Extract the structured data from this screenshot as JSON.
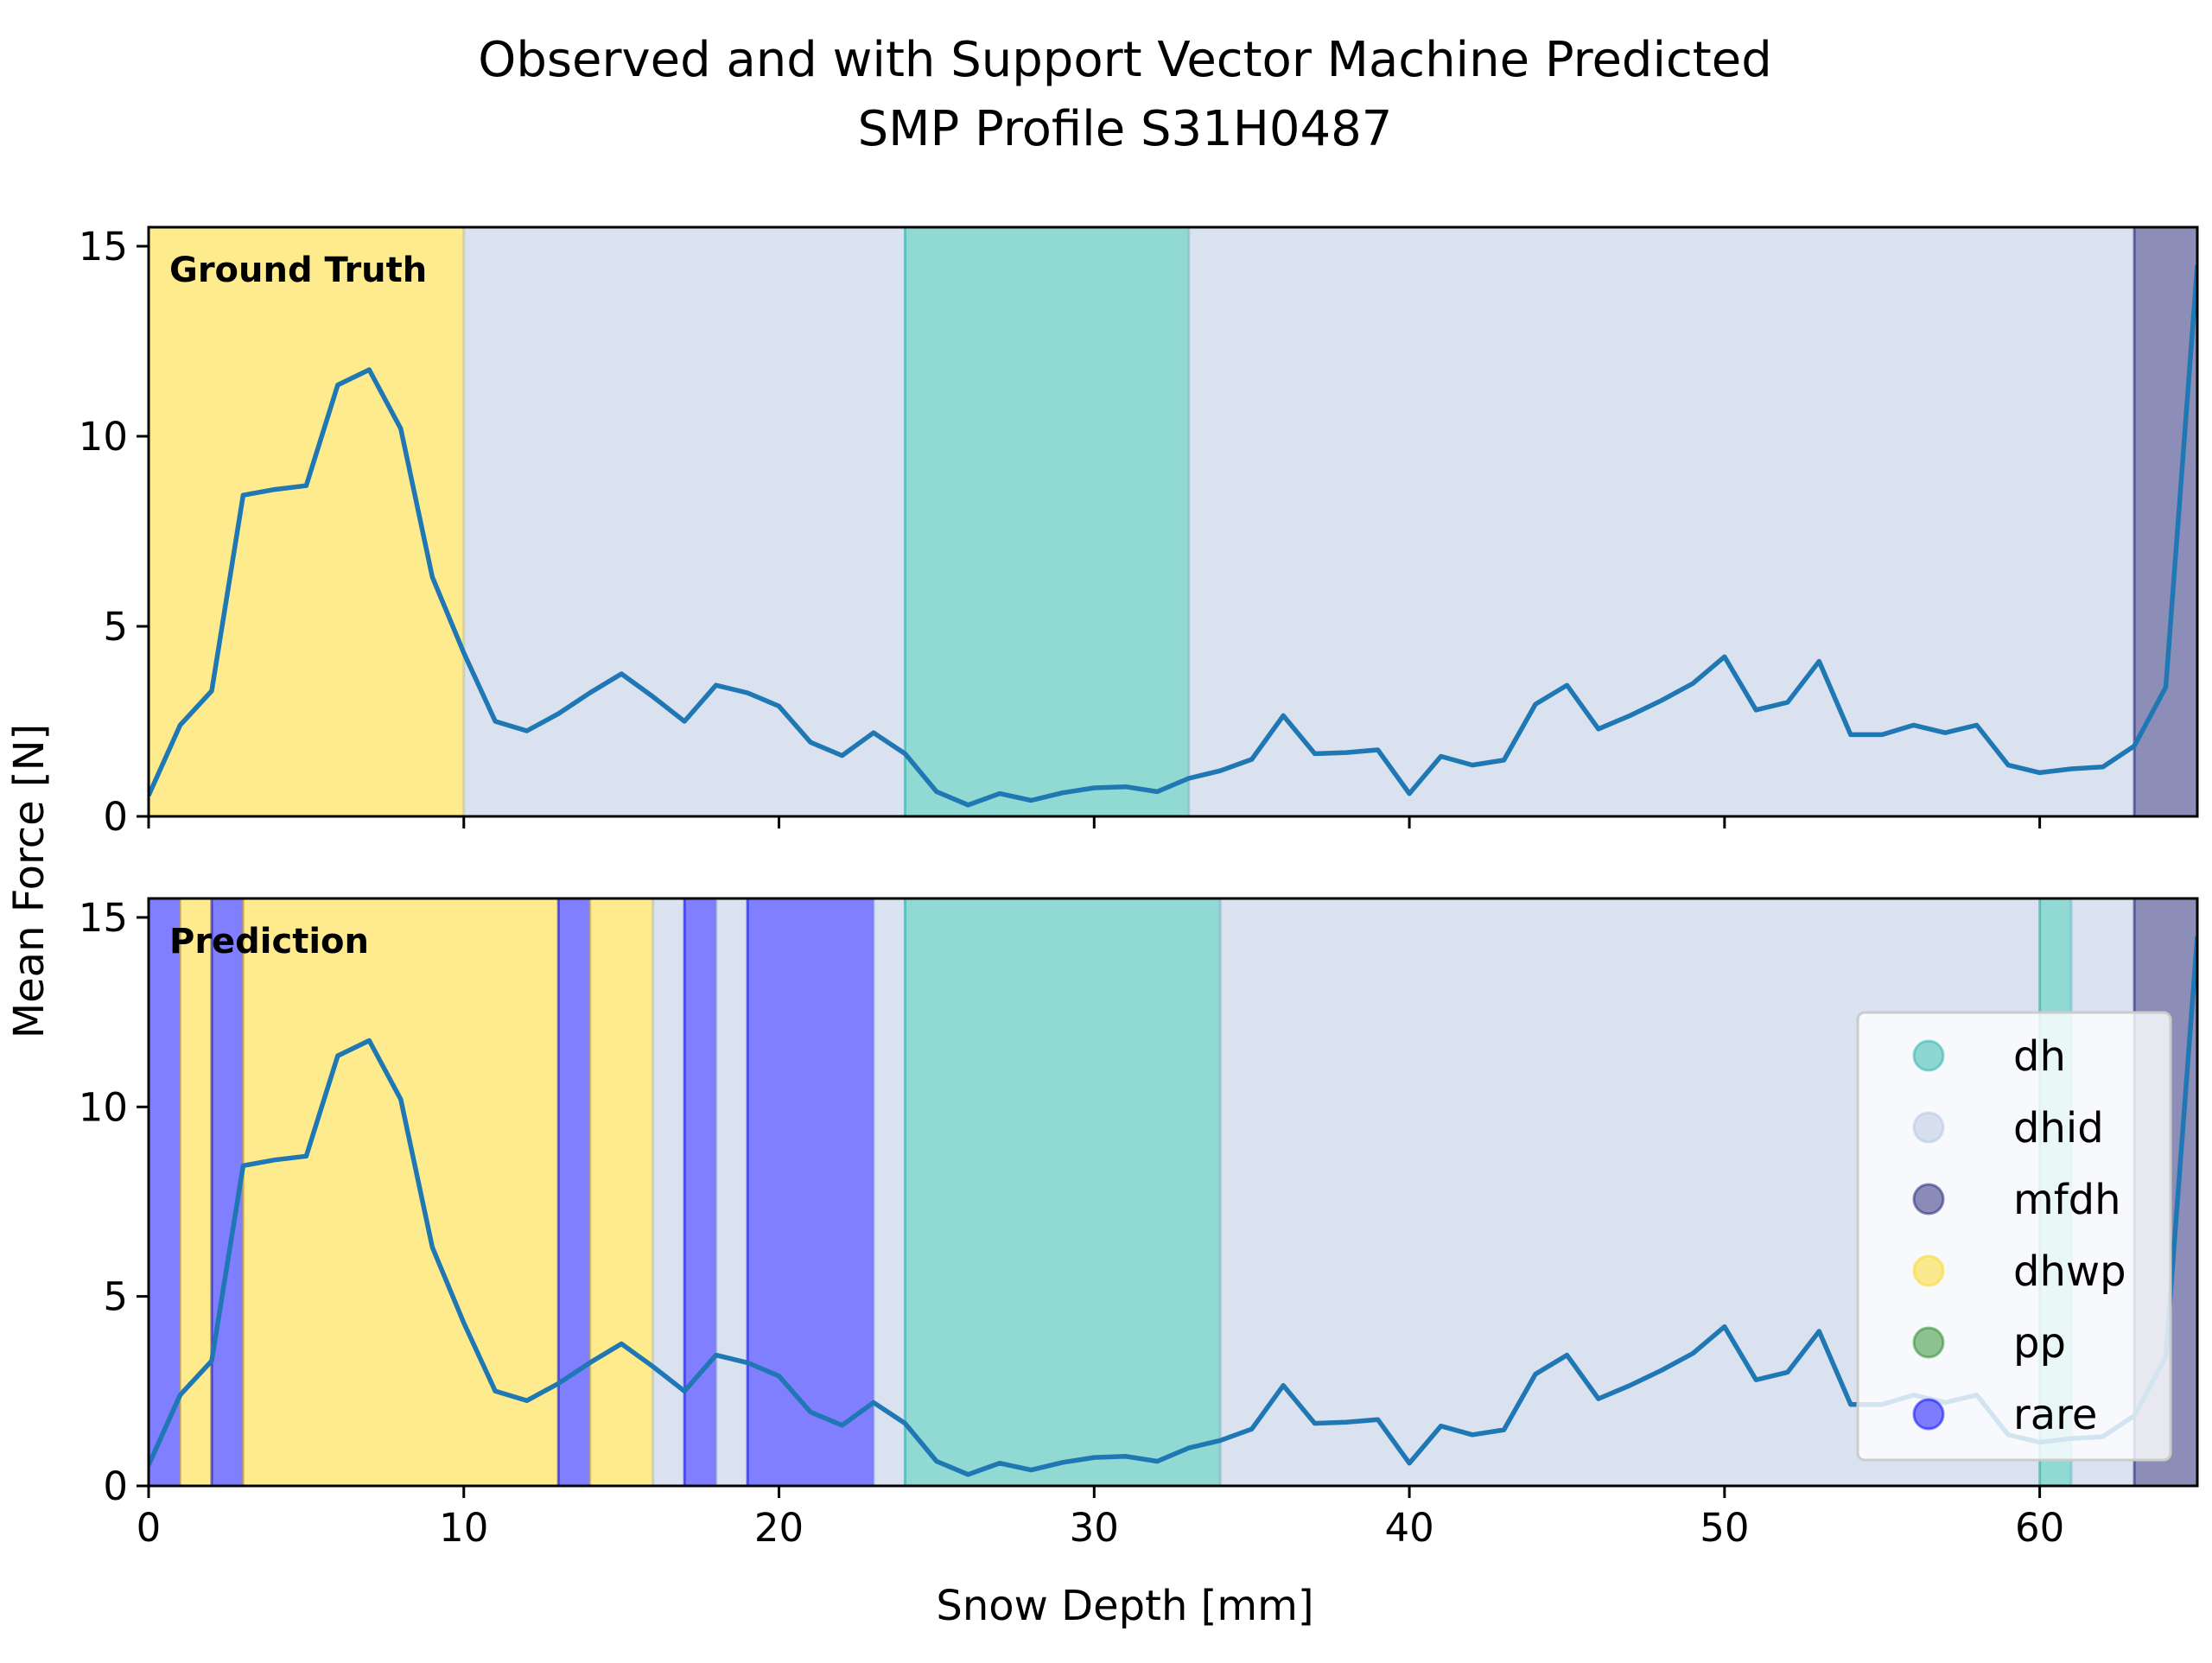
{
  "chart_data": {
    "type": "line",
    "title": [
      "Observed and with Support Vector Machine Predicted",
      "SMP Profile S31H0487"
    ],
    "xlabel": "Snow Depth [mm]",
    "ylabel": "Mean Force [N]",
    "xlim": [
      0,
      65
    ],
    "ylim": [
      0,
      15.5
    ],
    "xticks": [
      0,
      10,
      20,
      30,
      40,
      50,
      60
    ],
    "yticks": [
      0,
      5,
      10,
      15
    ],
    "colors": {
      "line": "#1f77b4",
      "dh": "#23b3a8",
      "dhid": "#b3c6de",
      "mfdh": "#1b1e72",
      "dhwp": "#fcd81e",
      "pp": "#218a21",
      "rare": "#0000ff"
    },
    "legend": {
      "position": "lower right",
      "entries": [
        "dh",
        "dhid",
        "mfdh",
        "dhwp",
        "pp",
        "rare"
      ]
    },
    "series": [
      {
        "x": [
          0,
          1,
          2,
          3,
          4,
          5,
          6,
          7,
          8,
          9,
          10,
          11,
          12,
          13,
          14,
          15,
          16,
          17,
          18,
          19,
          20,
          21,
          22,
          23,
          24,
          25,
          26,
          27,
          28,
          29,
          30,
          31,
          32,
          33,
          34,
          35,
          36,
          37,
          38,
          39,
          40,
          41,
          42,
          43,
          44,
          45,
          46,
          47,
          48,
          49,
          50,
          51,
          52,
          53,
          54,
          55,
          56,
          57,
          58,
          59,
          60,
          61,
          62,
          63,
          64,
          65
        ],
        "values": [
          0.55,
          2.4,
          3.3,
          8.45,
          8.6,
          8.7,
          11.35,
          11.75,
          10.2,
          6.3,
          4.3,
          2.5,
          2.25,
          2.7,
          3.25,
          3.75,
          3.15,
          2.5,
          3.45,
          3.25,
          2.9,
          1.95,
          1.6,
          2.2,
          1.65,
          0.65,
          0.3,
          0.6,
          0.42,
          0.62,
          0.75,
          0.78,
          0.65,
          1.0,
          1.2,
          1.5,
          2.65,
          1.65,
          1.68,
          1.75,
          0.6,
          1.58,
          1.35,
          1.48,
          2.95,
          3.45,
          2.3,
          2.65,
          3.05,
          3.5,
          4.2,
          2.8,
          3.0,
          4.08,
          2.15,
          2.15,
          2.4,
          2.2,
          2.4,
          1.35,
          1.15,
          1.25,
          1.3,
          1.85,
          3.4,
          14.5
        ]
      }
    ],
    "panels": [
      {
        "label": "Ground Truth",
        "segments": [
          {
            "start": 0,
            "end": 10,
            "class": "dhwp"
          },
          {
            "start": 10,
            "end": 24,
            "class": "dhid"
          },
          {
            "start": 24,
            "end": 33,
            "class": "dh"
          },
          {
            "start": 33,
            "end": 63,
            "class": "dhid"
          },
          {
            "start": 63,
            "end": 65,
            "class": "mfdh"
          }
        ]
      },
      {
        "label": "Prediction",
        "segments": [
          {
            "start": 0,
            "end": 1,
            "class": "rare"
          },
          {
            "start": 1,
            "end": 2,
            "class": "dhwp"
          },
          {
            "start": 2,
            "end": 3,
            "class": "rare"
          },
          {
            "start": 3,
            "end": 13,
            "class": "dhwp"
          },
          {
            "start": 13,
            "end": 14,
            "class": "rare"
          },
          {
            "start": 14,
            "end": 16,
            "class": "dhwp"
          },
          {
            "start": 16,
            "end": 17,
            "class": "dhid"
          },
          {
            "start": 17,
            "end": 18,
            "class": "rare"
          },
          {
            "start": 18,
            "end": 19,
            "class": "dhid"
          },
          {
            "start": 19,
            "end": 23,
            "class": "rare"
          },
          {
            "start": 23,
            "end": 24,
            "class": "dhid"
          },
          {
            "start": 24,
            "end": 34,
            "class": "dh"
          },
          {
            "start": 34,
            "end": 60,
            "class": "dhid"
          },
          {
            "start": 60,
            "end": 61,
            "class": "dh"
          },
          {
            "start": 61,
            "end": 63,
            "class": "dhid"
          },
          {
            "start": 63,
            "end": 65,
            "class": "mfdh"
          }
        ]
      }
    ]
  }
}
